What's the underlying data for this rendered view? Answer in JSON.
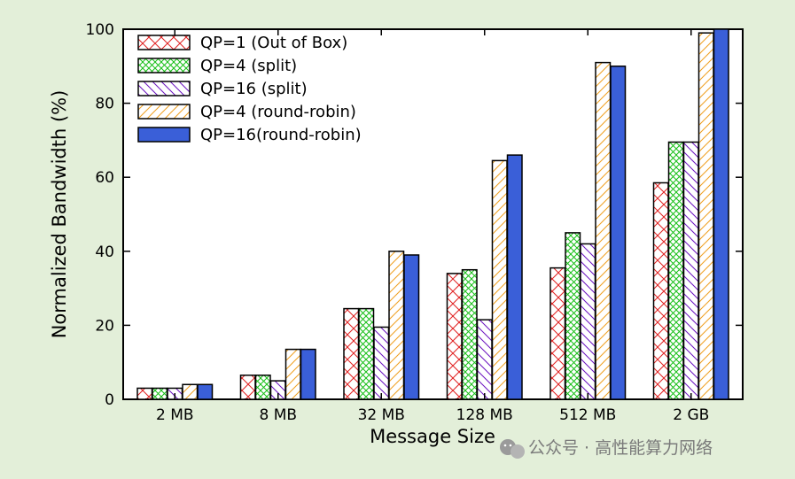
{
  "chart_data": {
    "type": "bar",
    "title": "",
    "xlabel": "Message Size",
    "ylabel": "Normalized Bandwidth (%)",
    "ylim": [
      0,
      100
    ],
    "yticks": [
      0,
      20,
      40,
      60,
      80,
      100
    ],
    "grid": false,
    "legend_position": "top-left",
    "categories": [
      "2 MB",
      "8 MB",
      "32 MB",
      "128 MB",
      "512 MB",
      "2 GB"
    ],
    "series": [
      {
        "name": "QP=1 (Out of Box)",
        "values": [
          3,
          6.5,
          24.5,
          34,
          35.5,
          58.5
        ],
        "color": "#e02020",
        "pattern": "cross"
      },
      {
        "name": "QP=4 (split)",
        "values": [
          3,
          6.5,
          24.5,
          35,
          45,
          69.5
        ],
        "color": "#18c018",
        "pattern": "diamond"
      },
      {
        "name": "QP=16 (split)",
        "values": [
          3,
          5,
          19.5,
          21.5,
          42,
          69.5
        ],
        "color": "#6a10c0",
        "pattern": "backslash"
      },
      {
        "name": "QP=4 (round-robin)",
        "values": [
          4,
          13.5,
          40,
          64.5,
          91,
          99
        ],
        "color": "#f0a020",
        "pattern": "slash"
      },
      {
        "name": "QP=16(round-robin)",
        "values": [
          4,
          13.5,
          39,
          66,
          90,
          100
        ],
        "color": "#3a5fd8",
        "pattern": "solid"
      }
    ]
  },
  "watermark": {
    "text": "公众号 · 高性能算力网络",
    "icon": "wechat-icon"
  }
}
